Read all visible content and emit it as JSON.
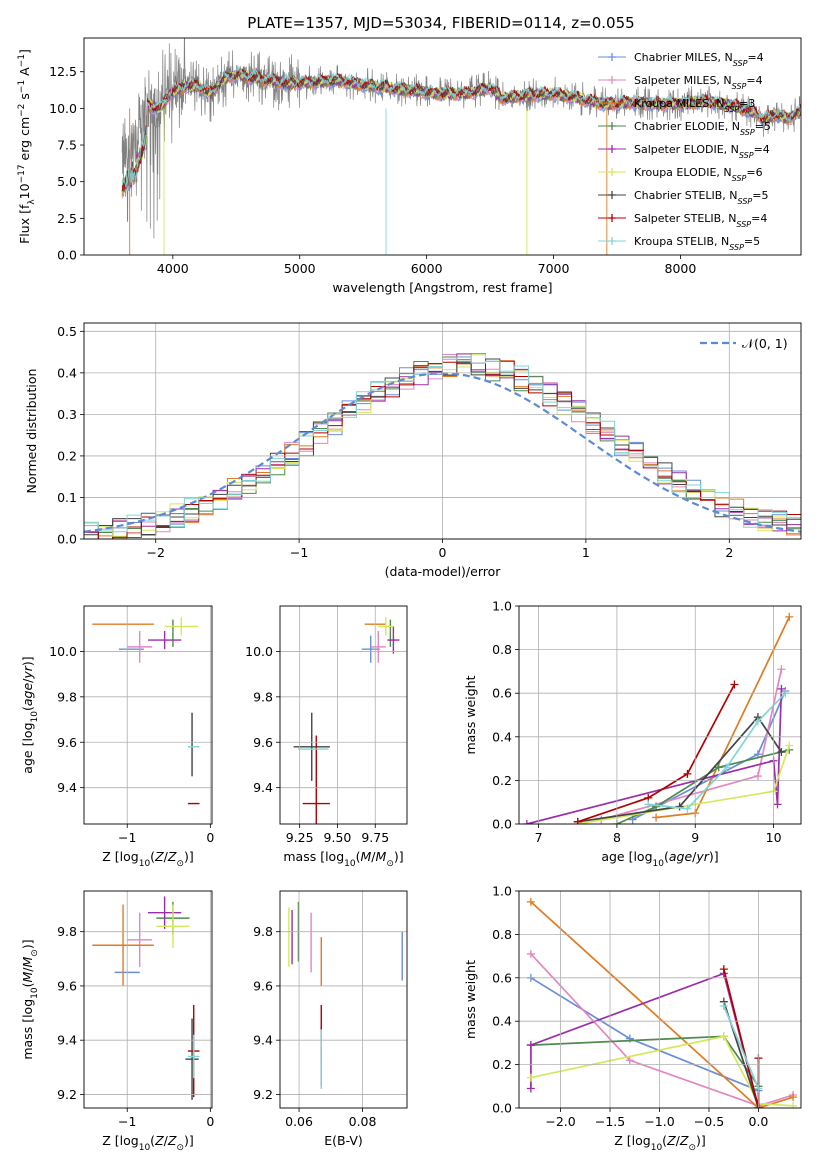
{
  "title": "PLATE=1357, MJD=53034, FIBERID=0114, z=0.055",
  "colors": {
    "chabrier_miles": "#6a8ed9",
    "salpeter_miles": "#e386c1",
    "kroupa_miles": "#e07b22",
    "chabrier_elodie": "#4f8a4f",
    "salpeter_elodie": "#9b2ea8",
    "kroupa_elodie": "#d3e85a",
    "chabrier_stelib": "#444444",
    "salpeter_stelib": "#b30000",
    "kroupa_stelib": "#7fd6d6",
    "data_spectrum": "#808080",
    "normal": "#5b8ad6",
    "grid": "#b0b0b0"
  },
  "chart_data": [
    {
      "type": "line",
      "panel": "spectrum",
      "xlabel": "wavelength [Angstrom, rest frame]",
      "ylabel": "Flux [f",
      "xlim": [
        3300,
        8950
      ],
      "ylim": [
        0,
        14.8
      ],
      "xticks": [
        "4000",
        "5000",
        "6000",
        "7000",
        "8000"
      ],
      "yticks": [
        "0.0",
        "2.5",
        "5.0",
        "7.5",
        "10.0",
        "12.5"
      ],
      "legend_position": "upper right",
      "legend": [
        "Chabrier MILES, N_SSP=4",
        "Salpeter MILES, N_SSP=4",
        "Kroupa MILES, N_SSP=3",
        "Chabrier ELODIE, N_SSP=5",
        "Salpeter ELODIE, N_SSP=4",
        "Kroupa ELODIE, N_SSP=6",
        "Chabrier STELIB, N_SSP=5",
        "Salpeter STELIB, N_SSP=4",
        "Kroupa STELIB, N_SSP=5"
      ],
      "continuum_points": [
        [
          3600,
          6.5
        ],
        [
          3700,
          7.6
        ],
        [
          3800,
          10.2
        ],
        [
          3900,
          10.0
        ],
        [
          4000,
          11.2
        ],
        [
          4100,
          11.5
        ],
        [
          4200,
          11.5
        ],
        [
          4300,
          11.0
        ],
        [
          4400,
          12.0
        ],
        [
          4500,
          12.3
        ],
        [
          4700,
          12.0
        ],
        [
          4900,
          11.7
        ],
        [
          5100,
          11.8
        ],
        [
          5300,
          11.9
        ],
        [
          5500,
          11.6
        ],
        [
          5700,
          11.4
        ],
        [
          5900,
          11.2
        ],
        [
          6100,
          11.0
        ],
        [
          6300,
          11.0
        ],
        [
          6500,
          11.4
        ],
        [
          6600,
          10.7
        ],
        [
          6800,
          10.9
        ],
        [
          7000,
          11.0
        ],
        [
          7200,
          10.7
        ],
        [
          7400,
          10.3
        ],
        [
          7600,
          10.4
        ],
        [
          7800,
          10.3
        ],
        [
          8000,
          10.3
        ],
        [
          8200,
          10.5
        ],
        [
          8400,
          10.2
        ],
        [
          8600,
          9.7
        ],
        [
          8650,
          9.2
        ],
        [
          8750,
          9.6
        ],
        [
          8850,
          9.3
        ],
        [
          8950,
          9.8
        ]
      ]
    },
    {
      "type": "histogram",
      "panel": "residuals",
      "xlabel": "(data-model)/error",
      "ylabel": "Normed distribution",
      "xlim": [
        -2.5,
        2.5
      ],
      "ylim": [
        0,
        0.52
      ],
      "xticks": [
        "−2",
        "−1",
        "0",
        "1",
        "2"
      ],
      "yticks": [
        "0.0",
        "0.1",
        "0.2",
        "0.3",
        "0.4",
        "0.5"
      ],
      "legend": "𝒩(0, 1)",
      "legend_position": "upper right",
      "bin_width": 0.1,
      "reference_curve": "normal(0,1)"
    },
    {
      "type": "scatter",
      "panel": "age_vs_Z",
      "xlabel": "Z [log10(Z/Z⊙)]",
      "ylabel": "age [log10(age/yr)]",
      "xlim": [
        -1.52,
        0.02
      ],
      "ylim": [
        9.24,
        10.2
      ],
      "xticks": [
        "−1",
        "0"
      ],
      "yticks": [
        "9.4",
        "9.6",
        "9.8",
        "10.0"
      ],
      "points": [
        {
          "model": "chabrier_miles",
          "x": -0.95,
          "xerr": 0.15,
          "y": 10.01,
          "yerr": 0.0
        },
        {
          "model": "salpeter_miles",
          "x": -0.85,
          "xerr": 0.15,
          "y": 10.02,
          "yerr": 0.07
        },
        {
          "model": "kroupa_miles",
          "x": -1.05,
          "xerr": 0.37,
          "y": 10.12,
          "yerr": 0.0
        },
        {
          "model": "chabrier_elodie",
          "x": -0.45,
          "xerr": 0.0,
          "y": 10.08,
          "yerr": 0.06
        },
        {
          "model": "salpeter_elodie",
          "x": -0.55,
          "xerr": 0.2,
          "y": 10.05,
          "yerr": 0.04
        },
        {
          "model": "kroupa_elodie",
          "x": -0.35,
          "xerr": 0.2,
          "y": 10.11,
          "yerr": 0.04
        },
        {
          "model": "chabrier_stelib",
          "x": -0.22,
          "xerr": 0.0,
          "y": 9.59,
          "yerr": 0.14
        },
        {
          "model": "salpeter_stelib",
          "x": -0.2,
          "xerr": 0.07,
          "y": 9.33,
          "yerr": 0.0
        },
        {
          "model": "kroupa_stelib",
          "x": -0.2,
          "xerr": 0.07,
          "y": 9.58,
          "yerr": 0.0
        }
      ]
    },
    {
      "type": "scatter",
      "panel": "age_vs_mass",
      "xlabel": "mass [log10(M/M⊙)]",
      "xlim": [
        9.12,
        9.96
      ],
      "ylim": [
        9.24,
        10.2
      ],
      "xticks": [
        "9.25",
        "9.50",
        "9.75"
      ],
      "yticks": [
        "9.4",
        "9.6",
        "9.8",
        "10.0"
      ],
      "points": [
        {
          "model": "chabrier_miles",
          "x": 9.72,
          "xerr": 0.06,
          "y": 10.01,
          "yerr": 0.06
        },
        {
          "model": "salpeter_miles",
          "x": 9.77,
          "xerr": 0.05,
          "y": 10.02,
          "yerr": 0.07
        },
        {
          "model": "kroupa_miles",
          "x": 9.75,
          "xerr": 0.07,
          "y": 10.12,
          "yerr": 0.0
        },
        {
          "model": "chabrier_elodie",
          "x": 9.85,
          "xerr": 0.0,
          "y": 10.08,
          "yerr": 0.06
        },
        {
          "model": "salpeter_elodie",
          "x": 9.87,
          "xerr": 0.04,
          "y": 10.05,
          "yerr": 0.06
        },
        {
          "model": "kroupa_elodie",
          "x": 9.82,
          "xerr": 0.05,
          "y": 10.11,
          "yerr": 0.04
        },
        {
          "model": "chabrier_stelib",
          "x": 9.33,
          "xerr": 0.12,
          "y": 9.58,
          "yerr": 0.15
        },
        {
          "model": "salpeter_stelib",
          "x": 9.36,
          "xerr": 0.09,
          "y": 9.33,
          "yerr": 0.3
        },
        {
          "model": "kroupa_stelib",
          "x": 9.34,
          "xerr": 0.1,
          "y": 9.57,
          "yerr": 0.0
        }
      ]
    },
    {
      "type": "line",
      "panel": "mass_weight_vs_age",
      "xlabel": "age [log10(age/yr)]",
      "ylabel": "mass weight",
      "xlim": [
        6.75,
        10.35
      ],
      "ylim": [
        0,
        1
      ],
      "xticks": [
        "7",
        "8",
        "9",
        "10"
      ],
      "yticks": [
        "0.0",
        "0.2",
        "0.4",
        "0.6",
        "0.8",
        "1.0"
      ],
      "series": [
        {
          "model": "chabrier_miles",
          "x": [
            8.2,
            9.8,
            10.15
          ],
          "y": [
            0.02,
            0.32,
            0.61
          ]
        },
        {
          "model": "salpeter_miles",
          "x": [
            7.8,
            9.8,
            10.1
          ],
          "y": [
            0.02,
            0.22,
            0.71
          ]
        },
        {
          "model": "kroupa_miles",
          "x": [
            8.5,
            9.0,
            10.2
          ],
          "y": [
            0.03,
            0.05,
            0.95
          ]
        },
        {
          "model": "chabrier_elodie",
          "x": [
            8.0,
            8.5,
            9.3,
            10.2
          ],
          "y": [
            0.0,
            0.08,
            0.26,
            0.34
          ]
        },
        {
          "model": "salpeter_elodie",
          "x": [
            6.85,
            10.0,
            10.05,
            10.1
          ],
          "y": [
            0.0,
            0.29,
            0.09,
            0.62
          ]
        },
        {
          "model": "kroupa_elodie",
          "x": [
            7.5,
            10.0,
            10.2
          ],
          "y": [
            0.0,
            0.15,
            0.36
          ]
        },
        {
          "model": "chabrier_stelib",
          "x": [
            7.5,
            8.8,
            9.8,
            10.1
          ],
          "y": [
            0.01,
            0.08,
            0.49,
            0.33
          ]
        },
        {
          "model": "salpeter_stelib",
          "x": [
            7.5,
            8.4,
            8.9,
            9.5
          ],
          "y": [
            0.01,
            0.12,
            0.23,
            0.64
          ]
        },
        {
          "model": "kroupa_stelib",
          "x": [
            8.4,
            8.9,
            9.4,
            9.8,
            10.15
          ],
          "y": [
            0.09,
            0.07,
            0.26,
            0.47,
            0.6
          ]
        }
      ]
    },
    {
      "type": "scatter",
      "panel": "mass_vs_Z",
      "xlabel": "Z [log10(Z/Z⊙)]",
      "ylabel": "mass [log10(M/M⊙)]",
      "xlim": [
        -1.52,
        0.02
      ],
      "ylim": [
        9.15,
        9.95
      ],
      "xticks": [
        "−1",
        "0"
      ],
      "yticks": [
        "9.2",
        "9.4",
        "9.6",
        "9.8"
      ],
      "points": [
        {
          "model": "chabrier_miles",
          "x": -1.0,
          "xerr": 0.15,
          "y": 9.65,
          "yerr": 0.0
        },
        {
          "model": "salpeter_miles",
          "x": -0.85,
          "xerr": 0.15,
          "y": 9.77,
          "yerr": 0.1
        },
        {
          "model": "kroupa_miles",
          "x": -1.05,
          "xerr": 0.37,
          "y": 9.75,
          "yerr": 0.15
        },
        {
          "model": "chabrier_elodie",
          "x": -0.45,
          "xerr": 0.2,
          "y": 9.85,
          "yerr": 0.06
        },
        {
          "model": "salpeter_elodie",
          "x": -0.55,
          "xerr": 0.2,
          "y": 9.87,
          "yerr": 0.06
        },
        {
          "model": "kroupa_elodie",
          "x": -0.45,
          "xerr": 0.2,
          "y": 9.82,
          "yerr": 0.08
        },
        {
          "model": "chabrier_stelib",
          "x": -0.22,
          "xerr": 0.08,
          "y": 9.33,
          "yerr": 0.15
        },
        {
          "model": "salpeter_stelib",
          "x": -0.2,
          "xerr": 0.07,
          "y": 9.36,
          "yerr": 0.17
        },
        {
          "model": "kroupa_stelib",
          "x": -0.2,
          "xerr": 0.07,
          "y": 9.34,
          "yerr": 0.08
        }
      ]
    },
    {
      "type": "scatter",
      "panel": "mass_vs_ebv",
      "xlabel": "E(B-V)",
      "xlim": [
        0.054,
        0.094
      ],
      "ylim": [
        9.15,
        9.95
      ],
      "xticks": [
        "0.06",
        "0.08"
      ],
      "yticks": [
        "9.2",
        "9.4",
        "9.6",
        "9.8"
      ],
      "points": [
        {
          "model": "chabrier_miles",
          "x": 0.0925,
          "xerr": 0.0,
          "y": 9.71,
          "yerr": 0.09
        },
        {
          "model": "salpeter_miles",
          "x": 0.0638,
          "xerr": 0.0,
          "y": 9.76,
          "yerr": 0.11
        },
        {
          "model": "kroupa_miles",
          "x": 0.067,
          "xerr": 0.0,
          "y": 9.69,
          "yerr": 0.09
        },
        {
          "model": "chabrier_elodie",
          "x": 0.0598,
          "xerr": 0.0,
          "y": 9.8,
          "yerr": 0.11
        },
        {
          "model": "salpeter_elodie",
          "x": 0.0578,
          "xerr": 0.0,
          "y": 9.78,
          "yerr": 0.1
        },
        {
          "model": "kroupa_elodie",
          "x": 0.0568,
          "xerr": 0.0,
          "y": 9.78,
          "yerr": 0.11
        },
        {
          "model": "chabrier_stelib",
          "x": 0.067,
          "xerr": 0.0,
          "y": 9.34,
          "yerr": 0.11
        },
        {
          "model": "salpeter_stelib",
          "x": 0.067,
          "xerr": 0.0,
          "y": 9.42,
          "yerr": 0.11
        },
        {
          "model": "kroupa_stelib",
          "x": 0.067,
          "xerr": 0.0,
          "y": 9.33,
          "yerr": 0.11
        }
      ]
    },
    {
      "type": "line",
      "panel": "mass_weight_vs_Z",
      "xlabel": "Z [log10(Z/Z⊙)]",
      "ylabel": "mass weight",
      "xlim": [
        -2.42,
        0.43
      ],
      "ylim": [
        0,
        1
      ],
      "xticks": [
        "−2.0",
        "−1.5",
        "−1.0",
        "−0.5",
        "0.0"
      ],
      "yticks": [
        "0.0",
        "0.2",
        "0.4",
        "0.6",
        "0.8",
        "1.0"
      ],
      "series": [
        {
          "model": "chabrier_miles",
          "x": [
            -2.3,
            -1.3,
            0.0
          ],
          "y": [
            0.6,
            0.32,
            0.08
          ]
        },
        {
          "model": "salpeter_miles",
          "x": [
            -2.3,
            -1.3,
            0.0,
            0.35
          ],
          "y": [
            0.71,
            0.22,
            0.01,
            0.06
          ]
        },
        {
          "model": "kroupa_miles",
          "x": [
            -2.3,
            0.0,
            0.35
          ],
          "y": [
            0.95,
            0.0,
            0.05
          ]
        },
        {
          "model": "chabrier_elodie",
          "x": [
            -2.3,
            -0.35,
            0.0
          ],
          "y": [
            0.29,
            0.33,
            0.1
          ]
        },
        {
          "model": "salpeter_elodie",
          "x": [
            -2.3,
            -2.3,
            -0.35,
            0.0
          ],
          "y": [
            0.09,
            0.29,
            0.62,
            0.0
          ]
        },
        {
          "model": "kroupa_elodie",
          "x": [
            -2.3,
            -0.35,
            0.0,
            0.35
          ],
          "y": [
            0.14,
            0.33,
            0.02,
            0.01
          ]
        },
        {
          "model": "chabrier_stelib",
          "x": [
            -0.35,
            0.0
          ],
          "y": [
            0.49,
            0.0
          ]
        },
        {
          "model": "salpeter_stelib",
          "x": [
            -0.35,
            0.0,
            0.0
          ],
          "y": [
            0.64,
            0.0,
            0.23
          ]
        },
        {
          "model": "kroupa_stelib",
          "x": [
            -0.35,
            0.0
          ],
          "y": [
            0.47,
            0.09
          ]
        }
      ]
    }
  ]
}
